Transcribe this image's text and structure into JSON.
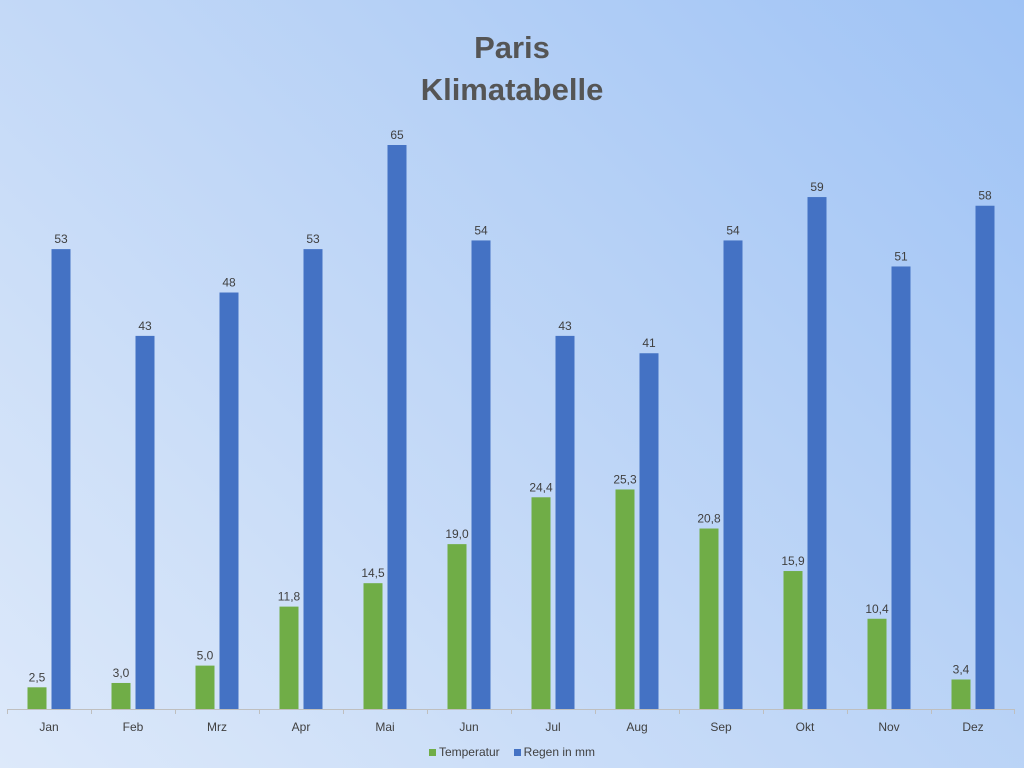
{
  "chart_data": {
    "type": "bar",
    "title": [
      "Paris",
      "Klimatabelle"
    ],
    "categories": [
      "Jan",
      "Feb",
      "Mrz",
      "Apr",
      "Mai",
      "Jun",
      "Jul",
      "Aug",
      "Sep",
      "Okt",
      "Nov",
      "Dez"
    ],
    "series": [
      {
        "name": "Temperatur",
        "color": "#70ad47",
        "values": [
          2.5,
          3.0,
          5.0,
          11.8,
          14.5,
          19.0,
          24.4,
          25.3,
          20.8,
          15.9,
          10.4,
          3.4
        ],
        "labels": [
          "2,5",
          "3,0",
          "5,0",
          "11,8",
          "14,5",
          "19,0",
          "24,4",
          "25,3",
          "20,8",
          "15,9",
          "10,4",
          "3,4"
        ]
      },
      {
        "name": "Regen in mm",
        "color": "#4472c4",
        "values": [
          53,
          43,
          48,
          53,
          65,
          54,
          43,
          41,
          54,
          59,
          51,
          58
        ],
        "labels": [
          "53",
          "43",
          "48",
          "53",
          "65",
          "54",
          "43",
          "41",
          "54",
          "59",
          "51",
          "58"
        ]
      }
    ],
    "ylim": [
      0,
      65
    ],
    "grid": false,
    "legend_position": "bottom"
  }
}
